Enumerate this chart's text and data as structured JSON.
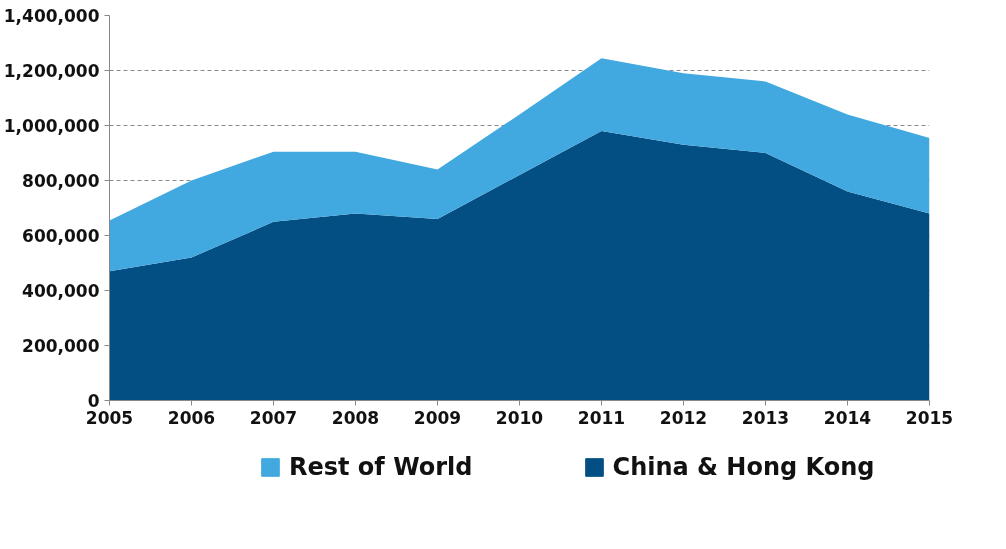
{
  "chart_data": {
    "type": "area",
    "stacked": true,
    "x": [
      2005,
      2006,
      2007,
      2008,
      2009,
      2010,
      2011,
      2012,
      2013,
      2014,
      2015
    ],
    "series": [
      {
        "name": "China & Hong Kong",
        "color": "#034f84",
        "values": [
          470000,
          520000,
          650000,
          680000,
          660000,
          820000,
          980000,
          930000,
          900000,
          760000,
          680000
        ]
      },
      {
        "name": "Rest of World",
        "color": "#41a9e0",
        "values": [
          185000,
          280000,
          255000,
          225000,
          180000,
          220000,
          265000,
          260000,
          260000,
          280000,
          275000
        ]
      }
    ],
    "xlim": [
      2005,
      2015
    ],
    "xticks": [
      2005,
      2006,
      2007,
      2008,
      2009,
      2010,
      2011,
      2012,
      2013,
      2014,
      2015
    ],
    "ylim": [
      0,
      1400000
    ],
    "yticks": [
      0,
      {
        "value": 200000,
        "label": "200,000"
      },
      {
        "value": 400000,
        "label": "400,000"
      },
      {
        "value": 600000,
        "label": "600,000"
      },
      {
        "value": 800000,
        "label": "800,000"
      },
      {
        "value": 1000000,
        "label": "1,000,000"
      },
      {
        "value": 1200000,
        "label": "1,200,000"
      },
      {
        "value": 1400000,
        "label": "1,400,000"
      }
    ],
    "grid": "y",
    "legend": "bottom"
  }
}
